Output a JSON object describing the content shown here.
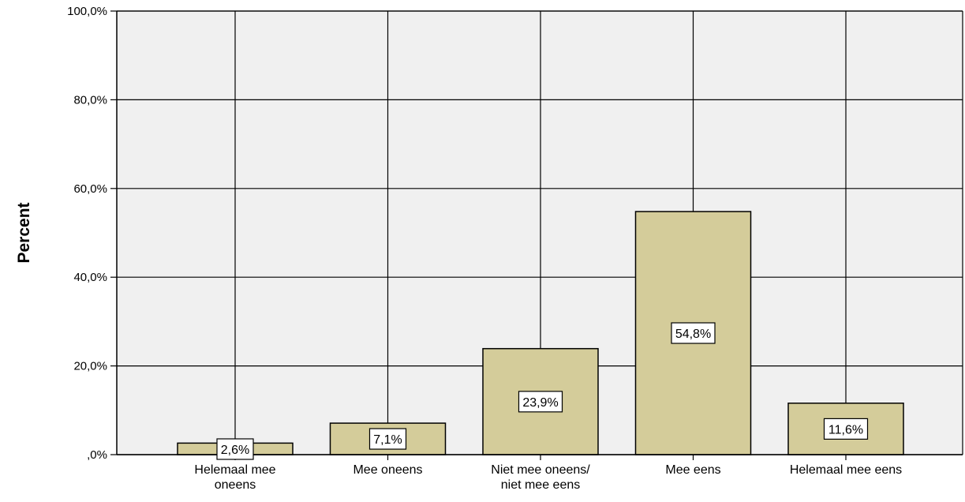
{
  "chart_data": {
    "type": "bar",
    "categories": [
      [
        "Helemaal mee",
        "oneens"
      ],
      [
        "Mee oneens"
      ],
      [
        "Niet mee oneens/",
        "niet mee eens"
      ],
      [
        "Mee eens"
      ],
      [
        "Helemaal mee eens"
      ]
    ],
    "values": [
      2.6,
      7.1,
      23.9,
      54.8,
      11.6
    ],
    "value_labels": [
      "2,6%",
      "7,1%",
      "23,9%",
      "54,8%",
      "11,6%"
    ],
    "ylabel": "Percent",
    "xlabel": "",
    "ylim": [
      0,
      100
    ],
    "yticks": [
      0,
      20,
      40,
      60,
      80,
      100
    ],
    "ytick_labels": [
      ",0%",
      "20,0%",
      "40,0%",
      "60,0%",
      "80,0%",
      "100,0%"
    ],
    "grid": true,
    "colors": {
      "bar_fill": "#d4cc9a",
      "bar_stroke": "#000000",
      "plot_bg": "#f0f0f0",
      "grid": "#000000",
      "label_box_fill": "#ffffff"
    }
  }
}
